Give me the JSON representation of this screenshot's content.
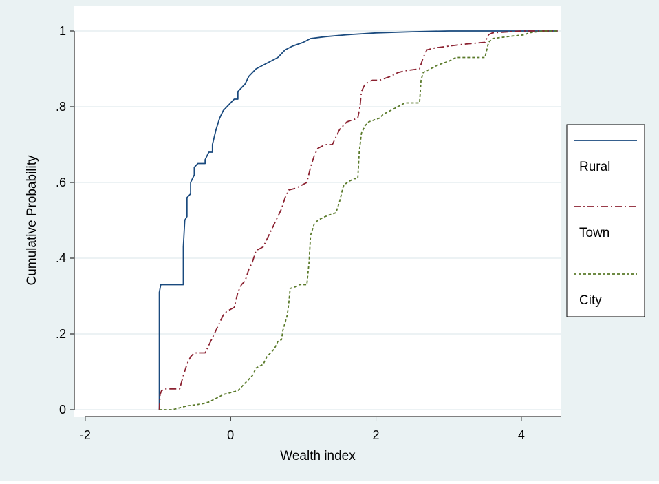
{
  "chart_data": {
    "type": "line",
    "title": "",
    "xlabel": "Wealth index",
    "ylabel": "Cumulative Probability",
    "xlim": [
      -2.15,
      4.55
    ],
    "ylim": [
      0,
      1
    ],
    "x_ticks": [
      -2,
      0,
      2,
      4
    ],
    "x_tick_labels": [
      "-2",
      "0",
      "2",
      "4"
    ],
    "y_ticks": [
      0,
      0.2,
      0.4,
      0.6,
      0.8,
      1
    ],
    "y_tick_labels": [
      "0",
      ".2",
      ".4",
      ".6",
      ".8",
      "1"
    ],
    "grid": true,
    "legend_position": "right",
    "series": [
      {
        "name": "Rural",
        "color": "#1a4a7e",
        "style": "solid",
        "points": [
          [
            -0.98,
            0
          ],
          [
            -0.98,
            0.31
          ],
          [
            -0.96,
            0.33
          ],
          [
            -0.92,
            0.33
          ],
          [
            -0.65,
            0.33
          ],
          [
            -0.65,
            0.43
          ],
          [
            -0.63,
            0.5
          ],
          [
            -0.6,
            0.51
          ],
          [
            -0.6,
            0.56
          ],
          [
            -0.55,
            0.57
          ],
          [
            -0.55,
            0.6
          ],
          [
            -0.5,
            0.62
          ],
          [
            -0.5,
            0.64
          ],
          [
            -0.45,
            0.65
          ],
          [
            -0.35,
            0.65
          ],
          [
            -0.35,
            0.66
          ],
          [
            -0.3,
            0.68
          ],
          [
            -0.25,
            0.68
          ],
          [
            -0.25,
            0.7
          ],
          [
            -0.2,
            0.74
          ],
          [
            -0.15,
            0.77
          ],
          [
            -0.1,
            0.79
          ],
          [
            -0.05,
            0.8
          ],
          [
            0,
            0.81
          ],
          [
            0.05,
            0.82
          ],
          [
            0.1,
            0.82
          ],
          [
            0.1,
            0.84
          ],
          [
            0.15,
            0.85
          ],
          [
            0.2,
            0.86
          ],
          [
            0.25,
            0.88
          ],
          [
            0.3,
            0.89
          ],
          [
            0.35,
            0.9
          ],
          [
            0.45,
            0.91
          ],
          [
            0.55,
            0.92
          ],
          [
            0.65,
            0.93
          ],
          [
            0.75,
            0.95
          ],
          [
            0.85,
            0.96
          ],
          [
            1.0,
            0.97
          ],
          [
            1.1,
            0.98
          ],
          [
            1.3,
            0.985
          ],
          [
            1.6,
            0.99
          ],
          [
            2.0,
            0.995
          ],
          [
            2.5,
            0.998
          ],
          [
            3.0,
            1
          ],
          [
            4.5,
            1
          ]
        ]
      },
      {
        "name": "Town",
        "color": "#8b2130",
        "style": "dashdot",
        "points": [
          [
            -0.98,
            0
          ],
          [
            -0.97,
            0.04
          ],
          [
            -0.95,
            0.05
          ],
          [
            -0.9,
            0.055
          ],
          [
            -0.7,
            0.055
          ],
          [
            -0.65,
            0.09
          ],
          [
            -0.6,
            0.12
          ],
          [
            -0.55,
            0.14
          ],
          [
            -0.5,
            0.15
          ],
          [
            -0.35,
            0.15
          ],
          [
            -0.3,
            0.17
          ],
          [
            -0.25,
            0.19
          ],
          [
            -0.2,
            0.21
          ],
          [
            -0.15,
            0.23
          ],
          [
            -0.1,
            0.25
          ],
          [
            -0.05,
            0.26
          ],
          [
            0.05,
            0.27
          ],
          [
            0.1,
            0.31
          ],
          [
            0.15,
            0.33
          ],
          [
            0.2,
            0.34
          ],
          [
            0.25,
            0.37
          ],
          [
            0.3,
            0.39
          ],
          [
            0.35,
            0.42
          ],
          [
            0.45,
            0.43
          ],
          [
            0.5,
            0.45
          ],
          [
            0.55,
            0.47
          ],
          [
            0.6,
            0.49
          ],
          [
            0.65,
            0.51
          ],
          [
            0.7,
            0.53
          ],
          [
            0.75,
            0.56
          ],
          [
            0.8,
            0.58
          ],
          [
            0.9,
            0.585
          ],
          [
            1.05,
            0.6
          ],
          [
            1.1,
            0.64
          ],
          [
            1.15,
            0.67
          ],
          [
            1.2,
            0.69
          ],
          [
            1.3,
            0.7
          ],
          [
            1.4,
            0.7
          ],
          [
            1.45,
            0.72
          ],
          [
            1.5,
            0.74
          ],
          [
            1.6,
            0.76
          ],
          [
            1.75,
            0.77
          ],
          [
            1.78,
            0.8
          ],
          [
            1.8,
            0.84
          ],
          [
            1.85,
            0.86
          ],
          [
            1.95,
            0.87
          ],
          [
            2.05,
            0.87
          ],
          [
            2.2,
            0.88
          ],
          [
            2.3,
            0.89
          ],
          [
            2.4,
            0.895
          ],
          [
            2.6,
            0.9
          ],
          [
            2.65,
            0.93
          ],
          [
            2.7,
            0.95
          ],
          [
            2.8,
            0.955
          ],
          [
            3.0,
            0.96
          ],
          [
            3.2,
            0.965
          ],
          [
            3.5,
            0.97
          ],
          [
            3.55,
            0.99
          ],
          [
            3.6,
            0.995
          ],
          [
            4.0,
            1
          ],
          [
            4.5,
            1
          ]
        ]
      },
      {
        "name": "City",
        "color": "#5a7a2a",
        "style": "dashed",
        "points": [
          [
            -0.98,
            0
          ],
          [
            -0.8,
            0
          ],
          [
            -0.7,
            0.005
          ],
          [
            -0.6,
            0.01
          ],
          [
            -0.4,
            0.015
          ],
          [
            -0.3,
            0.02
          ],
          [
            -0.2,
            0.03
          ],
          [
            -0.1,
            0.04
          ],
          [
            0.0,
            0.045
          ],
          [
            0.1,
            0.05
          ],
          [
            0.15,
            0.06
          ],
          [
            0.2,
            0.07
          ],
          [
            0.3,
            0.09
          ],
          [
            0.35,
            0.11
          ],
          [
            0.45,
            0.12
          ],
          [
            0.5,
            0.14
          ],
          [
            0.6,
            0.16
          ],
          [
            0.65,
            0.18
          ],
          [
            0.7,
            0.185
          ],
          [
            0.72,
            0.21
          ],
          [
            0.78,
            0.25
          ],
          [
            0.8,
            0.28
          ],
          [
            0.82,
            0.32
          ],
          [
            0.9,
            0.325
          ],
          [
            0.95,
            0.33
          ],
          [
            1.05,
            0.33
          ],
          [
            1.08,
            0.39
          ],
          [
            1.1,
            0.46
          ],
          [
            1.15,
            0.49
          ],
          [
            1.2,
            0.5
          ],
          [
            1.3,
            0.51
          ],
          [
            1.45,
            0.52
          ],
          [
            1.5,
            0.55
          ],
          [
            1.55,
            0.59
          ],
          [
            1.6,
            0.6
          ],
          [
            1.7,
            0.61
          ],
          [
            1.75,
            0.61
          ],
          [
            1.77,
            0.68
          ],
          [
            1.8,
            0.73
          ],
          [
            1.85,
            0.75
          ],
          [
            1.9,
            0.76
          ],
          [
            2.05,
            0.77
          ],
          [
            2.1,
            0.78
          ],
          [
            2.2,
            0.79
          ],
          [
            2.3,
            0.8
          ],
          [
            2.4,
            0.81
          ],
          [
            2.6,
            0.81
          ],
          [
            2.62,
            0.87
          ],
          [
            2.65,
            0.89
          ],
          [
            2.75,
            0.9
          ],
          [
            2.85,
            0.91
          ],
          [
            3.0,
            0.92
          ],
          [
            3.1,
            0.93
          ],
          [
            3.5,
            0.93
          ],
          [
            3.55,
            0.97
          ],
          [
            3.6,
            0.98
          ],
          [
            3.8,
            0.985
          ],
          [
            4.05,
            0.99
          ],
          [
            4.1,
            0.995
          ],
          [
            4.3,
            1
          ],
          [
            4.5,
            1
          ]
        ]
      }
    ]
  }
}
